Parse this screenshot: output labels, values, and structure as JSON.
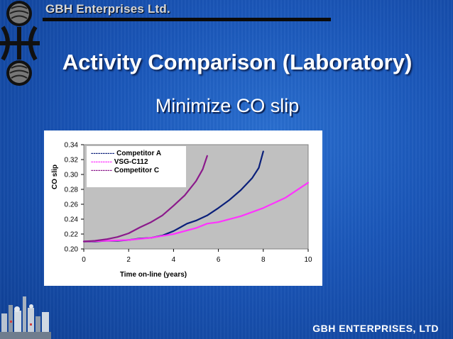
{
  "header": {
    "company_name": "GBH Enterprises Ltd."
  },
  "slide": {
    "title": "Activity Comparison (Laboratory)",
    "subtitle": "Minimize CO slip"
  },
  "footer": {
    "company": "GBH ENTERPRISES, LTD"
  },
  "colors": {
    "background": "#1a56b8",
    "competitor_a": "#0a1f7a",
    "vsg_c112": "#ff33ff",
    "competitor_c": "#8b1a8b",
    "plot_area": "#c0c0c0"
  },
  "chart_data": {
    "type": "line",
    "title": "",
    "xlabel": "Time on-line (years)",
    "ylabel": "CO slip",
    "xlim": [
      0,
      10
    ],
    "ylim": [
      0.2,
      0.34
    ],
    "x_ticks": [
      "0",
      "2",
      "4",
      "6",
      "8",
      "10"
    ],
    "y_ticks": [
      "0.20",
      "0.22",
      "0.24",
      "0.26",
      "0.28",
      "0.30",
      "0.32",
      "0.34"
    ],
    "grid": false,
    "legend_position": "top-left",
    "series": [
      {
        "name": "Competitor A",
        "legend_label": "---------- Competitor A",
        "color": "#0a1f7a",
        "x": [
          0,
          0.5,
          1,
          1.5,
          2,
          2.5,
          3,
          3.5,
          4,
          4.3,
          4.6,
          5,
          5.5,
          6,
          6.5,
          7,
          7.5,
          7.8,
          8
        ],
        "y": [
          0.21,
          0.21,
          0.211,
          0.211,
          0.212,
          0.214,
          0.215,
          0.218,
          0.224,
          0.229,
          0.234,
          0.238,
          0.245,
          0.255,
          0.266,
          0.279,
          0.295,
          0.309,
          0.331
        ]
      },
      {
        "name": "VSG-C112",
        "legend_label": "--------- VSG-C112",
        "color": "#ff33ff",
        "x": [
          0,
          1,
          2,
          3,
          4,
          5,
          5.5,
          6,
          7,
          8,
          9,
          10
        ],
        "y": [
          0.21,
          0.211,
          0.212,
          0.215,
          0.22,
          0.228,
          0.234,
          0.236,
          0.244,
          0.255,
          0.269,
          0.289
        ]
      },
      {
        "name": "Competitor C",
        "legend_label": "--------- Competitor C",
        "color": "#8b1a8b",
        "x": [
          0,
          0.5,
          1,
          1.5,
          2,
          2.5,
          3,
          3.5,
          4,
          4.5,
          5,
          5.3,
          5.5
        ],
        "y": [
          0.21,
          0.211,
          0.213,
          0.216,
          0.221,
          0.229,
          0.236,
          0.245,
          0.258,
          0.272,
          0.291,
          0.307,
          0.325
        ]
      }
    ]
  }
}
